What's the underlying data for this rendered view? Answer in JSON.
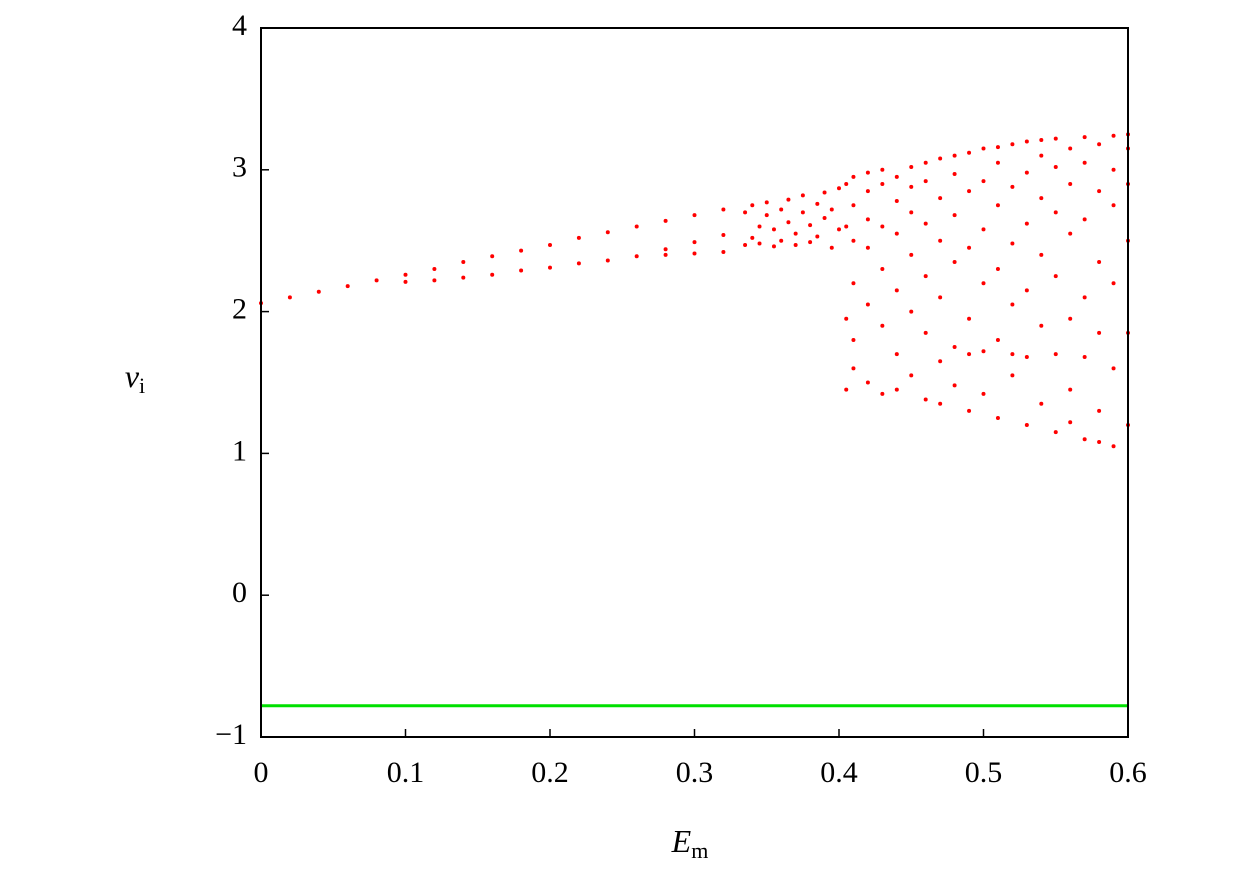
{
  "chart_data": {
    "type": "scatter",
    "xlabel": "E",
    "xlabel_sub": "m",
    "ylabel": "v",
    "ylabel_sub": "i",
    "xlim": [
      0,
      0.6
    ],
    "ylim": [
      -1,
      4
    ],
    "xticks": [
      0,
      0.1,
      0.2,
      0.3,
      0.4,
      0.5,
      0.6
    ],
    "yticks": [
      {
        "value": -1,
        "label": "−1"
      },
      0,
      1,
      2,
      3,
      4
    ],
    "grid": false,
    "series": [
      {
        "color": "#ff0000",
        "mode": "markers",
        "x": [
          0,
          0.02,
          0.04,
          0.06,
          0.08,
          0.1,
          0.12,
          0.14,
          0.16,
          0.18,
          0.2,
          0.22,
          0.24,
          0.26,
          0.28,
          0.3,
          0.32,
          0.1,
          0.12,
          0.14,
          0.16,
          0.18,
          0.2,
          0.22,
          0.24,
          0.26,
          0.28,
          0.3,
          0.32,
          0.28,
          0.3,
          0.32,
          0.335,
          0.335,
          0.34,
          0.34,
          0.345,
          0.345,
          0.35,
          0.35,
          0.355,
          0.355,
          0.36,
          0.36,
          0.365,
          0.365,
          0.37,
          0.37,
          0.375,
          0.375,
          0.38,
          0.38,
          0.385,
          0.385,
          0.39,
          0.39,
          0.395,
          0.395,
          0.4,
          0.4,
          0.405,
          0.405,
          0.405,
          0.405,
          0.41,
          0.41,
          0.41,
          0.41,
          0.41,
          0.41,
          0.42,
          0.42,
          0.42,
          0.42,
          0.42,
          0.42,
          0.43,
          0.43,
          0.43,
          0.43,
          0.43,
          0.43,
          0.44,
          0.44,
          0.44,
          0.44,
          0.44,
          0.44,
          0.45,
          0.45,
          0.45,
          0.45,
          0.45,
          0.45,
          0.46,
          0.46,
          0.46,
          0.46,
          0.46,
          0.46,
          0.47,
          0.47,
          0.47,
          0.47,
          0.47,
          0.47,
          0.48,
          0.48,
          0.48,
          0.48,
          0.48,
          0.48,
          0.49,
          0.49,
          0.49,
          0.49,
          0.49,
          0.49,
          0.5,
          0.5,
          0.5,
          0.5,
          0.5,
          0.5,
          0.51,
          0.51,
          0.51,
          0.51,
          0.51,
          0.51,
          0.52,
          0.52,
          0.52,
          0.52,
          0.52,
          0.52,
          0.53,
          0.53,
          0.53,
          0.53,
          0.53,
          0.53,
          0.54,
          0.54,
          0.54,
          0.54,
          0.54,
          0.54,
          0.55,
          0.55,
          0.55,
          0.55,
          0.55,
          0.55,
          0.56,
          0.56,
          0.56,
          0.56,
          0.56,
          0.56,
          0.57,
          0.57,
          0.57,
          0.57,
          0.57,
          0.57,
          0.58,
          0.58,
          0.58,
          0.58,
          0.58,
          0.58,
          0.59,
          0.59,
          0.59,
          0.59,
          0.59,
          0.59,
          0.6,
          0.6,
          0.6,
          0.6,
          0.6,
          0.6
        ],
        "values": [
          2.06,
          2.1,
          2.14,
          2.18,
          2.22,
          2.26,
          2.3,
          2.35,
          2.39,
          2.43,
          2.47,
          2.52,
          2.56,
          2.6,
          2.64,
          2.68,
          2.72,
          2.21,
          2.22,
          2.24,
          2.26,
          2.29,
          2.31,
          2.34,
          2.36,
          2.39,
          2.44,
          2.49,
          2.54,
          2.4,
          2.41,
          2.42,
          2.47,
          2.7,
          2.52,
          2.75,
          2.6,
          2.48,
          2.68,
          2.77,
          2.46,
          2.58,
          2.72,
          2.5,
          2.63,
          2.79,
          2.47,
          2.55,
          2.7,
          2.82,
          2.49,
          2.61,
          2.76,
          2.53,
          2.66,
          2.84,
          2.45,
          2.72,
          2.58,
          2.87,
          1.95,
          1.45,
          2.9,
          2.6,
          1.6,
          2.2,
          2.75,
          2.95,
          2.5,
          1.8,
          1.5,
          2.05,
          2.45,
          2.85,
          2.98,
          2.65,
          1.42,
          1.9,
          2.3,
          2.6,
          2.9,
          3.0,
          1.7,
          2.15,
          2.55,
          2.78,
          2.95,
          1.45,
          1.55,
          2.0,
          2.4,
          2.7,
          3.02,
          2.88,
          1.38,
          1.85,
          2.25,
          2.62,
          2.92,
          3.05,
          1.65,
          2.1,
          2.5,
          2.8,
          3.08,
          1.35,
          1.48,
          1.75,
          2.35,
          2.68,
          2.97,
          3.1,
          1.3,
          1.95,
          2.45,
          2.85,
          3.12,
          1.7,
          1.42,
          2.2,
          2.58,
          2.92,
          3.15,
          1.72,
          1.25,
          1.8,
          2.3,
          2.75,
          3.05,
          3.16,
          1.55,
          2.05,
          2.48,
          2.88,
          3.18,
          1.7,
          1.2,
          1.68,
          2.15,
          2.62,
          2.98,
          3.2,
          1.35,
          1.9,
          2.4,
          2.8,
          3.1,
          3.21,
          1.15,
          1.7,
          2.25,
          2.7,
          3.02,
          3.22,
          1.45,
          1.95,
          2.55,
          2.9,
          3.15,
          1.22,
          1.1,
          1.68,
          2.1,
          2.65,
          3.05,
          3.23,
          1.3,
          1.85,
          2.35,
          2.85,
          3.18,
          1.08,
          1.05,
          1.6,
          2.2,
          2.75,
          3.0,
          3.24,
          1.2,
          1.85,
          2.5,
          2.9,
          3.15,
          3.25
        ]
      },
      {
        "color": "#00e000",
        "mode": "line",
        "x": [
          0,
          0.6
        ],
        "values": [
          -0.78,
          -0.78
        ]
      }
    ]
  }
}
